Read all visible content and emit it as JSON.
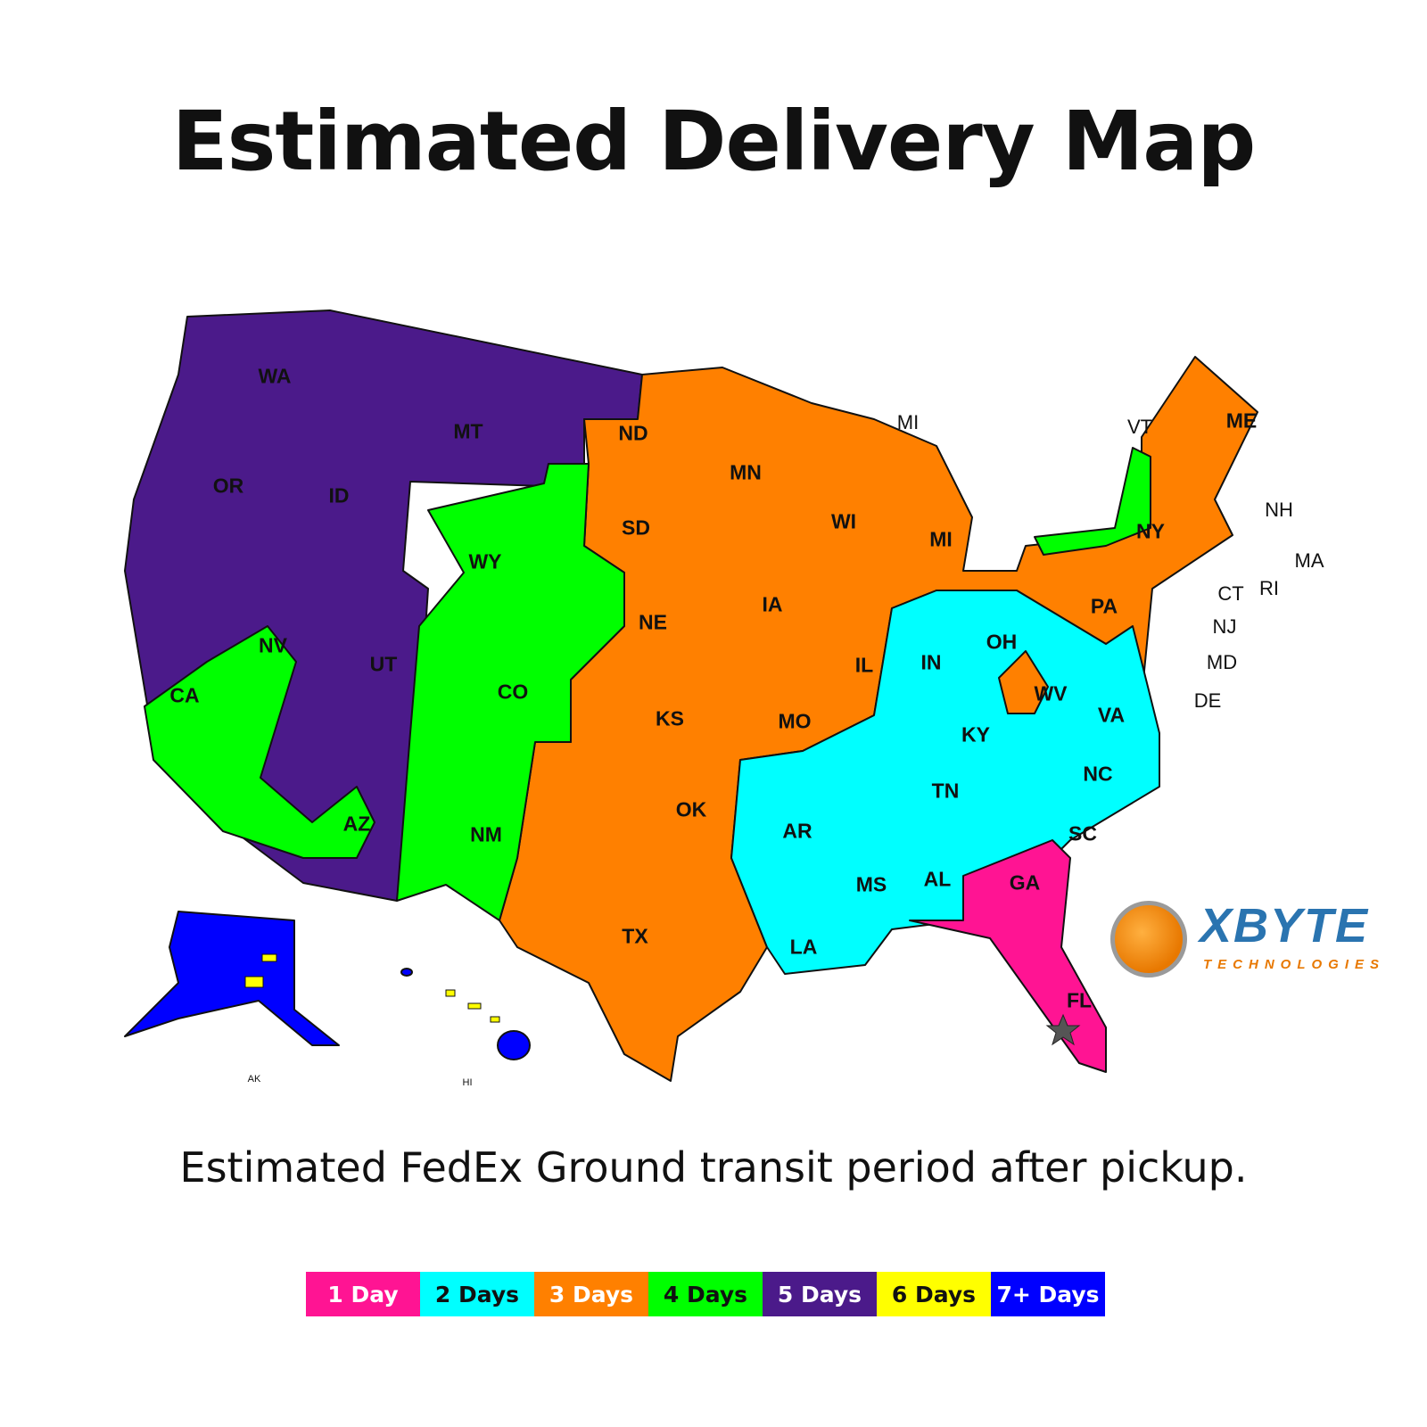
{
  "title": "Estimated Delivery Map",
  "subtitle": "Estimated FedEx Ground transit period after pickup.",
  "legend": [
    {
      "label": "1 Day",
      "color": "#ff1493",
      "text_color": "#ffffff"
    },
    {
      "label": "2 Days",
      "color": "#00ffff",
      "text_color": "#111111"
    },
    {
      "label": "3 Days",
      "color": "#ff8000",
      "text_color": "#ffffff"
    },
    {
      "label": "4 Days",
      "color": "#00ff00",
      "text_color": "#111111"
    },
    {
      "label": "5 Days",
      "color": "#4b1a8a",
      "text_color": "#ffffff"
    },
    {
      "label": "6 Days",
      "color": "#ffff00",
      "text_color": "#111111"
    },
    {
      "label": "7+ Days",
      "color": "#0000ff",
      "text_color": "#ffffff"
    }
  ],
  "origin_marker": "star-icon",
  "states": [
    {
      "abbr": "WA"
    },
    {
      "abbr": "OR"
    },
    {
      "abbr": "ID"
    },
    {
      "abbr": "MT"
    },
    {
      "abbr": "WY"
    },
    {
      "abbr": "NV"
    },
    {
      "abbr": "CA"
    },
    {
      "abbr": "UT"
    },
    {
      "abbr": "CO"
    },
    {
      "abbr": "AZ"
    },
    {
      "abbr": "NM"
    },
    {
      "abbr": "ND"
    },
    {
      "abbr": "SD"
    },
    {
      "abbr": "NE"
    },
    {
      "abbr": "KS"
    },
    {
      "abbr": "OK"
    },
    {
      "abbr": "TX"
    },
    {
      "abbr": "MN"
    },
    {
      "abbr": "IA"
    },
    {
      "abbr": "MO"
    },
    {
      "abbr": "AR"
    },
    {
      "abbr": "LA"
    },
    {
      "abbr": "WI"
    },
    {
      "abbr": "IL"
    },
    {
      "abbr": "MI"
    },
    {
      "abbr": "IN"
    },
    {
      "abbr": "OH"
    },
    {
      "abbr": "KY"
    },
    {
      "abbr": "TN"
    },
    {
      "abbr": "MS"
    },
    {
      "abbr": "AL"
    },
    {
      "abbr": "GA"
    },
    {
      "abbr": "FL"
    },
    {
      "abbr": "SC"
    },
    {
      "abbr": "NC"
    },
    {
      "abbr": "VA"
    },
    {
      "abbr": "WV"
    },
    {
      "abbr": "PA"
    },
    {
      "abbr": "NY"
    },
    {
      "abbr": "ME"
    },
    {
      "abbr": "MI"
    },
    {
      "abbr": "VT"
    },
    {
      "abbr": "NH"
    },
    {
      "abbr": "MA"
    },
    {
      "abbr": "RI"
    },
    {
      "abbr": "CT"
    },
    {
      "abbr": "NJ"
    },
    {
      "abbr": "MD"
    },
    {
      "abbr": "DE"
    },
    {
      "abbr": "AK"
    },
    {
      "abbr": "HI"
    }
  ],
  "logo": {
    "brand": "XBYTE",
    "tagline": "TECHNOLOGIES"
  }
}
